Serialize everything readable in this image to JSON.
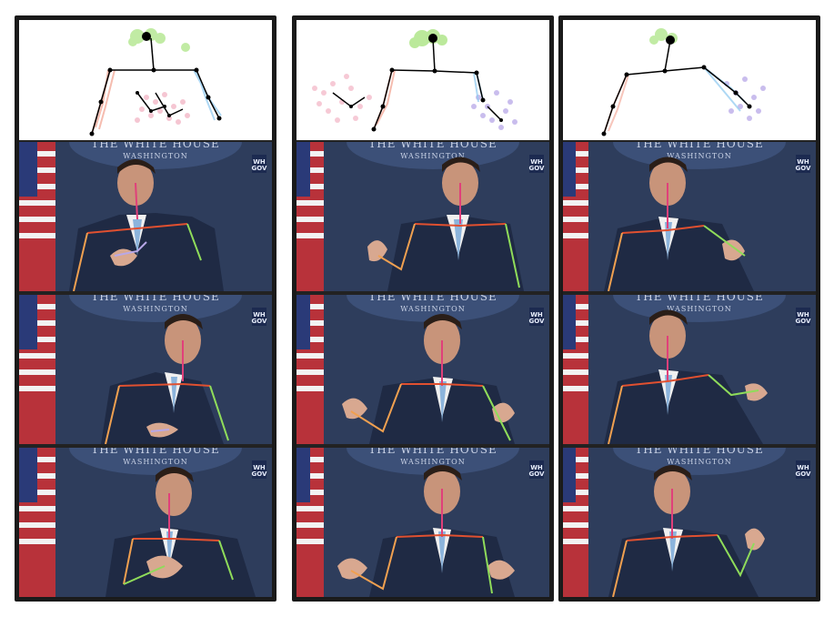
{
  "columns": [
    {
      "id": "left"
    },
    {
      "id": "middle"
    },
    {
      "id": "right"
    }
  ],
  "seal": {
    "title": "THE WHITE HOUSE",
    "subtitle": "WASHINGTON"
  },
  "badge": {
    "line1": "WH",
    "line2": "GOV"
  },
  "colors": {
    "head": "#8fdc5a",
    "torso": "#000000",
    "left_arm": "#f2a08e",
    "right_arm": "#8cc8f0",
    "left_hand": "#f3b8c8",
    "right_hand": "#b8a8e8",
    "backdrop": "#2e3d5c",
    "suit": "#1f2a44"
  }
}
